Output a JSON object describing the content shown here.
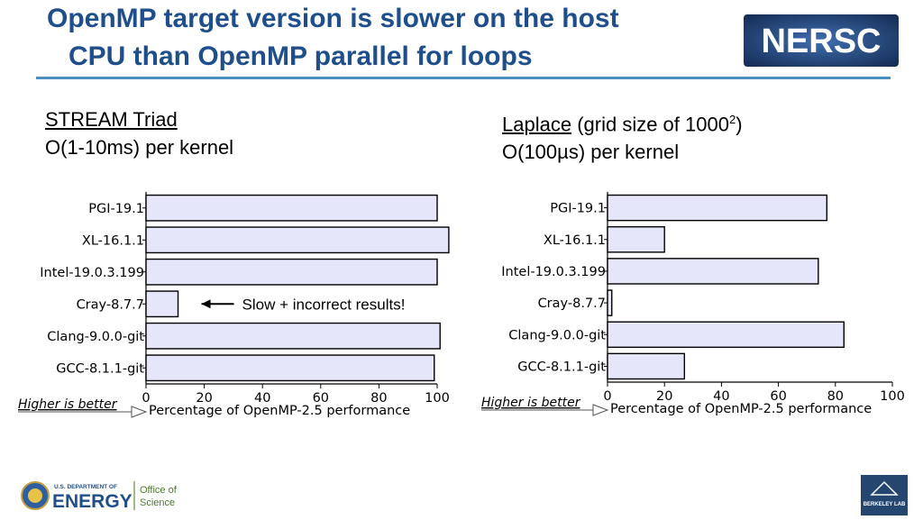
{
  "slide": {
    "title_line1": "OpenMP target version is slower on the host",
    "title_line2": "CPU than OpenMP parallel for loops"
  },
  "left_panel": {
    "heading": "STREAM Triad",
    "subheading": "O(1-10ms) per kernel"
  },
  "right_panel": {
    "heading_link": "Laplace",
    "heading_rest": " (grid size of 1000",
    "heading_sup": "2",
    "heading_close": ")",
    "subheading": "O(100µs) per kernel"
  },
  "logos": {
    "nersc": "NERSC",
    "doe_small": "U.S. DEPARTMENT OF",
    "doe_big": "ENERGY",
    "office": "Office of",
    "science": "Science",
    "berkeley": "BERKELEY LAB"
  },
  "colors": {
    "title": "#1f4e8c",
    "rule": "#4a8ec2",
    "bar_fill": "#e6e6fa",
    "bar_stroke": "#000000",
    "nersc_bg": "#1e3a6b"
  },
  "chart_data": [
    {
      "type": "bar",
      "orientation": "horizontal",
      "categories": [
        "PGI-19.1",
        "XL-16.1.1",
        "Intel-19.0.3.199",
        "Cray-8.7.7",
        "Clang-9.0.0-git",
        "GCC-8.1.1-git"
      ],
      "values": [
        100,
        104,
        100,
        11,
        101,
        99
      ],
      "xlim": [
        0,
        100
      ],
      "xticks": [
        0,
        20,
        40,
        60,
        80,
        100
      ],
      "xlabel": "Percentage of OpenMP-2.5 performance",
      "note": "Higher is better",
      "annotation": {
        "text": "Slow + incorrect results!",
        "category": "Cray-8.7.7"
      }
    },
    {
      "type": "bar",
      "orientation": "horizontal",
      "categories": [
        "PGI-19.1",
        "XL-16.1.1",
        "Intel-19.0.3.199",
        "Cray-8.7.7",
        "Clang-9.0.0-git",
        "GCC-8.1.1-git"
      ],
      "values": [
        77,
        20,
        74,
        1.5,
        83,
        27
      ],
      "xlim": [
        0,
        100
      ],
      "xticks": [
        0,
        20,
        40,
        60,
        80,
        100
      ],
      "xlabel": "Percentage of OpenMP-2.5 performance",
      "note": "Higher is better"
    }
  ]
}
